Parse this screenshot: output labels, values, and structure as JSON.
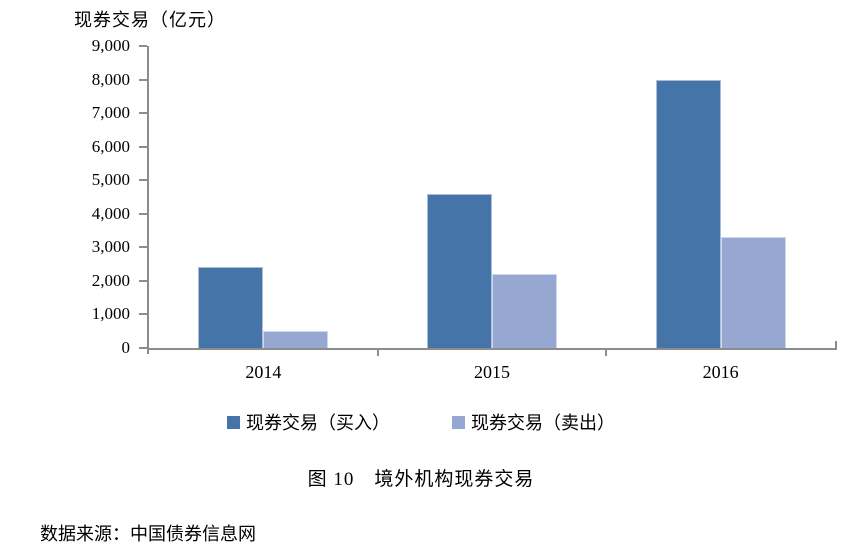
{
  "chart_data": {
    "type": "bar",
    "title": "现券交易（亿元）",
    "categories": [
      "2014",
      "2015",
      "2016"
    ],
    "series": [
      {
        "name": "现券交易（买入）",
        "color": "#4574A8",
        "values": [
          2400,
          4600,
          8000
        ]
      },
      {
        "name": "现券交易（卖出）",
        "color": "#96A7D1",
        "values": [
          500,
          2200,
          3300
        ]
      }
    ],
    "ylim": [
      0,
      9000
    ],
    "ytick_step": 1000,
    "ytick_labels": [
      "0",
      "1,000",
      "2,000",
      "3,000",
      "4,000",
      "5,000",
      "6,000",
      "7,000",
      "8,000",
      "9,000"
    ],
    "grid": false,
    "legend_position": "bottom",
    "axis_color": "#8C8C8C"
  },
  "caption": "图 10　境外机构现券交易",
  "source": "数据来源：中国债券信息网"
}
